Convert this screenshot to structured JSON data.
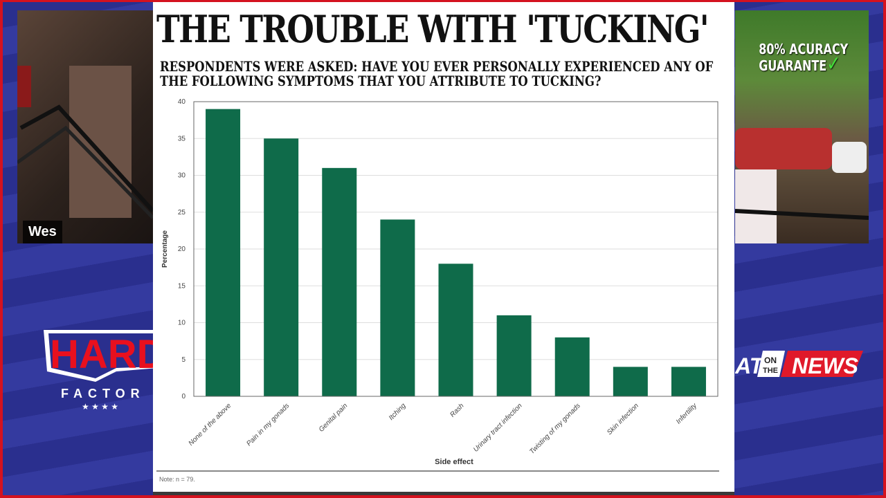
{
  "webcam_left": {
    "name": "Wes"
  },
  "webcam_right": {
    "overlay_line1": "80% ACURACY",
    "overlay_line2": "GUARANTE"
  },
  "logos": {
    "left": "HARD FACTOR",
    "right_prefix": "AT",
    "right_on": "ON",
    "right_the": "THE",
    "right_news": "NEWS"
  },
  "colors": {
    "bar": "#0f6b4a",
    "border": "#d4121f",
    "background": "#2f3596"
  },
  "panel": {
    "title": "THE TROUBLE WITH 'TUCKING'",
    "subtitle": "RESPONDENTS WERE ASKED: HAVE YOU EVER PERSONALLY EXPERIENCED ANY OF THE FOLLOWING SYMPTOMS THAT YOU ATTRIBUTE TO TUCKING?",
    "note": "Note: n = 79."
  },
  "chart_data": {
    "type": "bar",
    "categories": [
      "None of the above",
      "Pain in my gonads",
      "Genital pain",
      "Itching",
      "Rash",
      "Urinary tract infection",
      "Twisting of my gonads",
      "Skin infection",
      "Infertility"
    ],
    "values": [
      39,
      35,
      31,
      24,
      18,
      11,
      8,
      4,
      4
    ],
    "xlabel": "Side effect",
    "ylabel": "Percentage",
    "ylim": [
      0,
      40
    ],
    "yticks": [
      0,
      5,
      10,
      15,
      20,
      25,
      30,
      35,
      40
    ],
    "grid": true
  }
}
